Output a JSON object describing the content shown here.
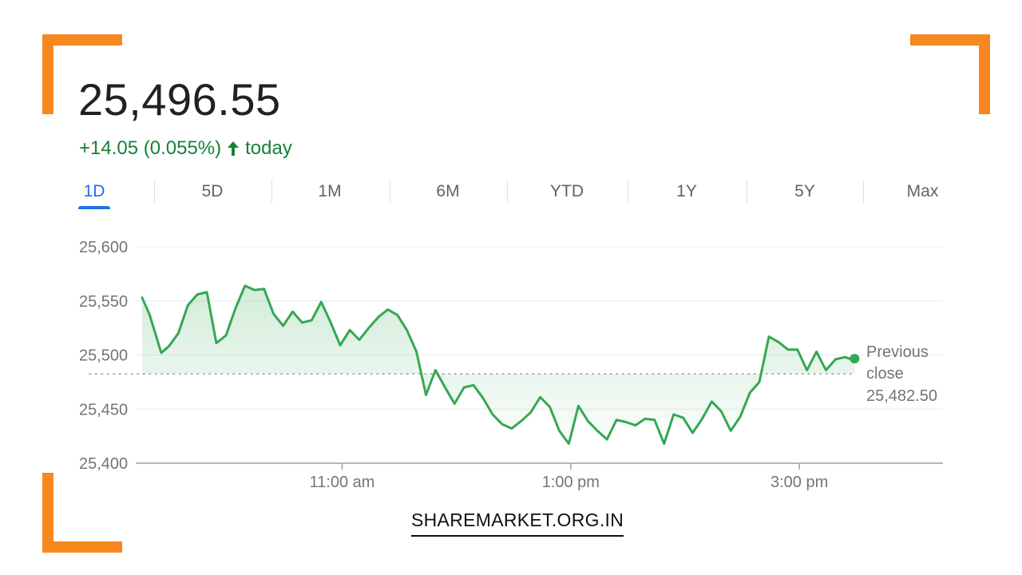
{
  "header": {
    "price": "25,496.55",
    "change": "+14.05 (0.055%)",
    "change_suffix": "today",
    "change_color": "#188038"
  },
  "tabs": [
    "1D",
    "5D",
    "1M",
    "6M",
    "YTD",
    "1Y",
    "5Y",
    "Max"
  ],
  "active_tab": "1D",
  "colors": {
    "accent_orange": "#f7871f",
    "line_green": "#34a853",
    "tab_active": "#1a73e8"
  },
  "chart_data": {
    "type": "line",
    "y_ticks": [
      "25,600",
      "25,550",
      "25,500",
      "25,450",
      "25,400"
    ],
    "ylim": [
      25400,
      25600
    ],
    "x_tick_labels": [
      "11:00 am",
      "1:00 pm",
      "3:00 pm"
    ],
    "x_ticks_minutes": [
      660,
      780,
      900
    ],
    "xlim_minutes": [
      555,
      980
    ],
    "previous_close": {
      "label_line1": "Previous",
      "label_line2": "close",
      "value_text": "25,482.50",
      "value": 25482.5
    },
    "series": [
      {
        "points": [
          [
            555,
            25553
          ],
          [
            559,
            25537
          ],
          [
            565,
            25502
          ],
          [
            569,
            25508
          ],
          [
            574,
            25520
          ],
          [
            579,
            25546
          ],
          [
            584,
            25556
          ],
          [
            589,
            25558
          ],
          [
            594,
            25511
          ],
          [
            599,
            25518
          ],
          [
            604,
            25543
          ],
          [
            609,
            25564
          ],
          [
            614,
            25560
          ],
          [
            619,
            25561
          ],
          [
            624,
            25538
          ],
          [
            629,
            25527
          ],
          [
            634,
            25540
          ],
          [
            639,
            25530
          ],
          [
            644,
            25532
          ],
          [
            649,
            25549
          ],
          [
            654,
            25530
          ],
          [
            659,
            25509
          ],
          [
            664,
            25523
          ],
          [
            669,
            25514
          ],
          [
            674,
            25525
          ],
          [
            679,
            25535
          ],
          [
            684,
            25542
          ],
          [
            689,
            25537
          ],
          [
            694,
            25523
          ],
          [
            699,
            25503
          ],
          [
            704,
            25463
          ],
          [
            709,
            25486
          ],
          [
            714,
            25470
          ],
          [
            719,
            25455
          ],
          [
            724,
            25470
          ],
          [
            729,
            25472
          ],
          [
            734,
            25460
          ],
          [
            739,
            25445
          ],
          [
            744,
            25436
          ],
          [
            749,
            25432
          ],
          [
            754,
            25439
          ],
          [
            759,
            25447
          ],
          [
            764,
            25461
          ],
          [
            769,
            25452
          ],
          [
            774,
            25430
          ],
          [
            779,
            25418
          ],
          [
            784,
            25453
          ],
          [
            789,
            25439
          ],
          [
            794,
            25430
          ],
          [
            799,
            25422
          ],
          [
            804,
            25440
          ],
          [
            809,
            25438
          ],
          [
            814,
            25435
          ],
          [
            819,
            25441
          ],
          [
            824,
            25440
          ],
          [
            829,
            25418
          ],
          [
            834,
            25445
          ],
          [
            839,
            25442
          ],
          [
            844,
            25428
          ],
          [
            849,
            25441
          ],
          [
            854,
            25457
          ],
          [
            859,
            25448
          ],
          [
            864,
            25430
          ],
          [
            869,
            25443
          ],
          [
            874,
            25465
          ],
          [
            879,
            25475
          ],
          [
            884,
            25517
          ],
          [
            889,
            25512
          ],
          [
            894,
            25505
          ],
          [
            899,
            25505
          ],
          [
            904,
            25486
          ],
          [
            909,
            25503
          ],
          [
            914,
            25486
          ],
          [
            919,
            25496
          ],
          [
            924,
            25498
          ],
          [
            929,
            25495
          ]
        ],
        "last_value": 25496.55
      }
    ]
  },
  "footer": {
    "site": "SHAREMARKET.ORG.IN"
  }
}
